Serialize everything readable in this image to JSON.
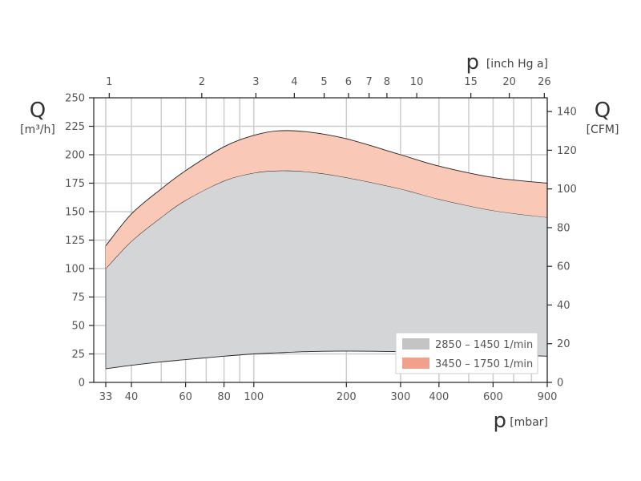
{
  "chart_data": {
    "type": "area",
    "title": "",
    "left_axis": {
      "symbol": "Q",
      "unit": "[m³/h]",
      "ylim": [
        0,
        250
      ],
      "ticks": [
        0,
        25,
        50,
        75,
        100,
        125,
        150,
        175,
        200,
        225,
        250
      ]
    },
    "right_axis": {
      "symbol": "Q",
      "unit": "[CFM]",
      "ylim": [
        0,
        147.1
      ],
      "ticks": [
        0,
        20,
        40,
        60,
        80,
        100,
        120,
        140
      ]
    },
    "bottom_axis": {
      "symbol": "p",
      "unit": "[mbar]",
      "scale": "log",
      "xlim": [
        33,
        900
      ],
      "ticks": [
        33,
        40,
        60,
        80,
        100,
        200,
        300,
        400,
        600,
        900
      ]
    },
    "top_axis": {
      "symbol": "p",
      "unit": "[inch Hg a]",
      "scale": "log",
      "ticks": [
        1,
        2,
        3,
        4,
        5,
        6,
        7,
        8,
        10,
        15,
        20,
        26
      ],
      "mbar_per_unit": 33.8639
    },
    "grid": true,
    "legend_position": "bottom-right",
    "series": [
      {
        "name": "2850 – 1450 1/min",
        "color": "#d4d5d7",
        "legend_color": "#c4c4c4",
        "x": [
          33,
          40,
          50,
          60,
          80,
          100,
          120,
          150,
          200,
          300,
          400,
          600,
          900
        ],
        "lower": [
          12,
          15,
          18,
          20,
          23,
          25,
          26,
          27,
          27.5,
          27,
          26,
          24.5,
          23
        ],
        "upper": [
          100,
          124,
          145,
          160,
          177,
          184,
          186,
          185,
          180,
          170,
          161,
          151,
          145
        ]
      },
      {
        "name": "3450 – 1750 1/min",
        "color": "#f9c8b7",
        "legend_color": "#f1a08c",
        "x": [
          33,
          40,
          50,
          60,
          80,
          100,
          120,
          150,
          200,
          300,
          400,
          600,
          900
        ],
        "lower": [
          100,
          124,
          145,
          160,
          177,
          184,
          186,
          185,
          180,
          170,
          161,
          151,
          145
        ],
        "upper": [
          120,
          148,
          170,
          186,
          207,
          217,
          221,
          220,
          214,
          200,
          190,
          180,
          175
        ]
      }
    ]
  }
}
